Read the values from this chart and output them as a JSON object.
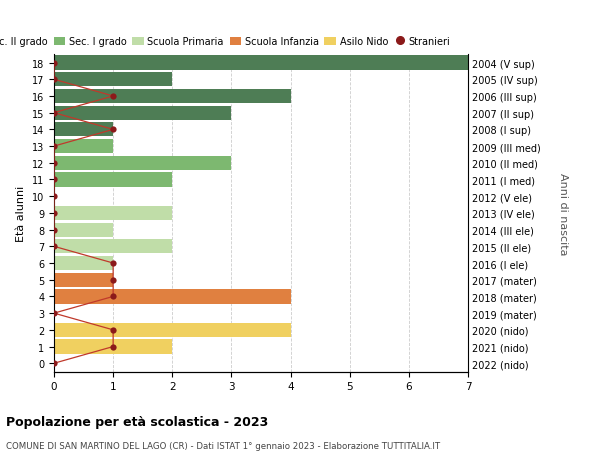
{
  "ages": [
    18,
    17,
    16,
    15,
    14,
    13,
    12,
    11,
    10,
    9,
    8,
    7,
    6,
    5,
    4,
    3,
    2,
    1,
    0
  ],
  "years": [
    "2004 (V sup)",
    "2005 (IV sup)",
    "2006 (III sup)",
    "2007 (II sup)",
    "2008 (I sup)",
    "2009 (III med)",
    "2010 (II med)",
    "2011 (I med)",
    "2012 (V ele)",
    "2013 (IV ele)",
    "2014 (III ele)",
    "2015 (II ele)",
    "2016 (I ele)",
    "2017 (mater)",
    "2018 (mater)",
    "2019 (mater)",
    "2020 (nido)",
    "2021 (nido)",
    "2022 (nido)"
  ],
  "bar_values": [
    7,
    2,
    4,
    3,
    1,
    1,
    3,
    2,
    0,
    2,
    1,
    2,
    1,
    1,
    4,
    0,
    4,
    2,
    0
  ],
  "stranieri_values": [
    0,
    0,
    1,
    0,
    1,
    0,
    0,
    0,
    0,
    0,
    0,
    0,
    1,
    1,
    1,
    0,
    1,
    1,
    0
  ],
  "bar_colors": [
    "#4e7d55",
    "#4e7d55",
    "#4e7d55",
    "#4e7d55",
    "#4e7d55",
    "#7db870",
    "#7db870",
    "#7db870",
    "#c0dda8",
    "#c0dda8",
    "#c0dda8",
    "#c0dda8",
    "#c0dda8",
    "#e08040",
    "#e08040",
    "#e08040",
    "#f0d060",
    "#f0d060",
    "#f0d060"
  ],
  "legend_labels": [
    "Sec. II grado",
    "Sec. I grado",
    "Scuola Primaria",
    "Scuola Infanzia",
    "Asilo Nido",
    "Stranieri"
  ],
  "legend_colors": [
    "#4e7d55",
    "#7db870",
    "#c0dda8",
    "#e08040",
    "#f0d060",
    "#8b1a1a"
  ],
  "title": "Popolazione per età scolastica - 2023",
  "subtitle": "COMUNE DI SAN MARTINO DEL LAGO (CR) - Dati ISTAT 1° gennaio 2023 - Elaborazione TUTTITALIA.IT",
  "ylabel_left": "Età alunni",
  "ylabel_right": "Anni di nascita",
  "xlim": [
    0,
    7
  ],
  "stranieri_color": "#8b1a1a",
  "stranieri_line_color": "#c0392b",
  "bg_color": "#ffffff",
  "grid_color": "#cccccc",
  "bar_height": 0.85
}
